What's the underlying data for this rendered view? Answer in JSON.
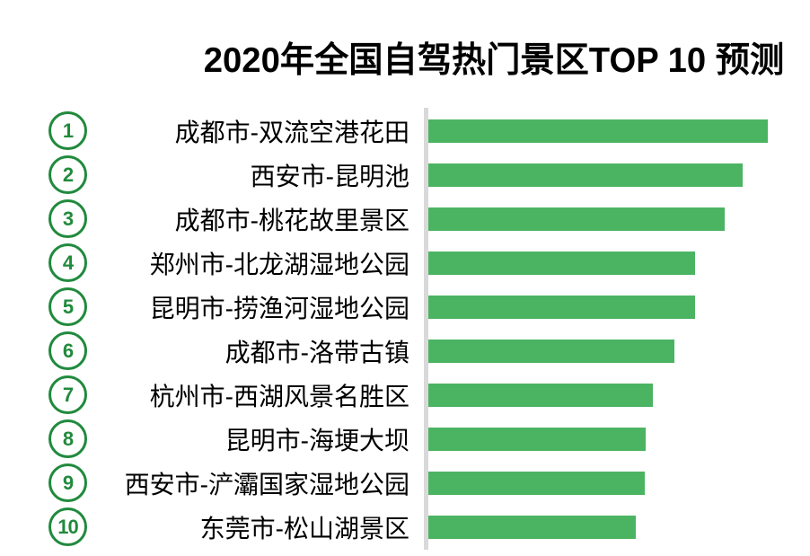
{
  "title": "2020年全国自驾热门景区TOP 10 预测",
  "colors": {
    "bar": "#4bb462",
    "badge": "#218a3d",
    "axis": "#d9d9d9",
    "title_text": "#000000",
    "label_text": "#000000"
  },
  "chart_data": {
    "type": "bar",
    "orientation": "horizontal",
    "title": "2020年全国自驾热门景区TOP 10 预测",
    "ranks": [
      "1",
      "2",
      "3",
      "4",
      "5",
      "6",
      "7",
      "8",
      "9",
      "10"
    ],
    "categories": [
      "成都市-双流空港花田",
      "西安市-昆明池",
      "成都市-桃花故里景区",
      "郑州市-北龙湖湿地公园",
      "昆明市-捞渔河湿地公园",
      "成都市-洛带古镇",
      "杭州市-西湖风景名胜区",
      "昆明市-海埂大坝",
      "西安市-浐灞国家湿地公园",
      "东莞市-松山湖景区"
    ],
    "values": [
      100,
      92.6,
      87.3,
      78.6,
      78.6,
      72.5,
      66.1,
      64.0,
      63.8,
      61.1
    ],
    "value_note": "relative bar lengths as percent of longest bar; chart shows no numeric axis or data labels",
    "xlabel": "",
    "ylabel": "",
    "grid": false,
    "legend": false,
    "axis_line": "vertical light-gray baseline at left of bars"
  }
}
